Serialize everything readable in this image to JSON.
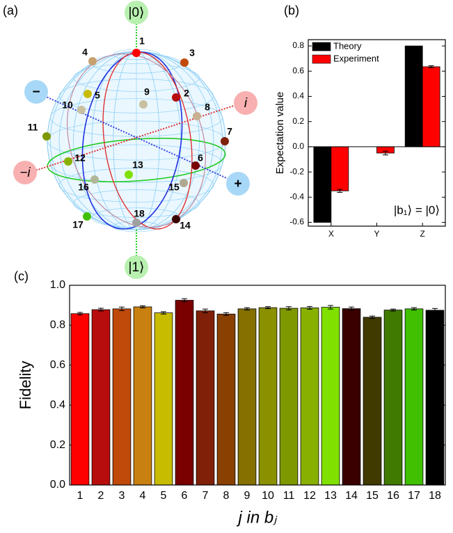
{
  "sphere": {
    "panel_label": "(a)",
    "axes": {
      "top": "|0⟩",
      "bottom": "|1⟩",
      "right": "i",
      "left": "−i",
      "minus": "−",
      "plus": "+"
    },
    "points": [
      "1",
      "2",
      "3",
      "4",
      "5",
      "6",
      "7",
      "8",
      "9",
      "10",
      "11",
      "12",
      "13",
      "14",
      "15",
      "16",
      "17",
      "18"
    ]
  },
  "chart_data": [
    {
      "type": "bar",
      "panel_label": "(b)",
      "ylabel": "Expectation value",
      "annotation": "|b₁⟩ = |0⟩",
      "categories": [
        "X",
        "Y",
        "Z"
      ],
      "series": [
        {
          "name": "Theory",
          "color": "#000000",
          "values": [
            -0.6,
            0,
            0.8
          ]
        },
        {
          "name": "Experiment",
          "color": "#ff0000",
          "values": [
            -0.35,
            -0.05,
            0.635
          ],
          "errors": [
            0.012,
            0.015,
            0.008
          ]
        }
      ],
      "ylim": [
        -0.63,
        0.85
      ],
      "yticks": [
        -0.6,
        -0.4,
        -0.2,
        {
          "value": 0,
          "label": "0.0"
        },
        0.2,
        0.4,
        0.6,
        0.8
      ],
      "legend": "upper left"
    },
    {
      "type": "bar",
      "panel_label": "(c)",
      "ylabel": "Fidelity",
      "xlabel": "j in bⱼ",
      "categories": [
        "1",
        "2",
        "3",
        "4",
        "5",
        "6",
        "7",
        "8",
        "9",
        "10",
        "11",
        "12",
        "13",
        "14",
        "15",
        "16",
        "17",
        "18"
      ],
      "values": [
        0.858,
        0.878,
        0.882,
        0.892,
        0.862,
        0.925,
        0.872,
        0.856,
        0.882,
        0.888,
        0.885,
        0.887,
        0.89,
        0.883,
        0.84,
        0.876,
        0.882,
        0.875
      ],
      "errors": [
        0.006,
        0.007,
        0.009,
        0.005,
        0.006,
        0.008,
        0.009,
        0.007,
        0.006,
        0.005,
        0.008,
        0.007,
        0.009,
        0.008,
        0.006,
        0.005,
        0.006,
        0.009
      ],
      "colors": [
        "#ff0000",
        "#b80d0d",
        "#c04a0a",
        "#c88010",
        "#c8bc00",
        "#7a0000",
        "#802008",
        "#8a4000",
        "#857000",
        "#8a9000",
        "#7e9800",
        "#88b000",
        "#80e000",
        "#3a0000",
        "#403a00",
        "#407a00",
        "#40c000",
        "#000000"
      ],
      "ylim": [
        0,
        1
      ],
      "yticks": [
        {
          "value": 0,
          "label": "0.0"
        },
        0.2,
        0.4,
        0.6,
        0.8,
        {
          "value": 1,
          "label": "1.0"
        }
      ]
    }
  ]
}
